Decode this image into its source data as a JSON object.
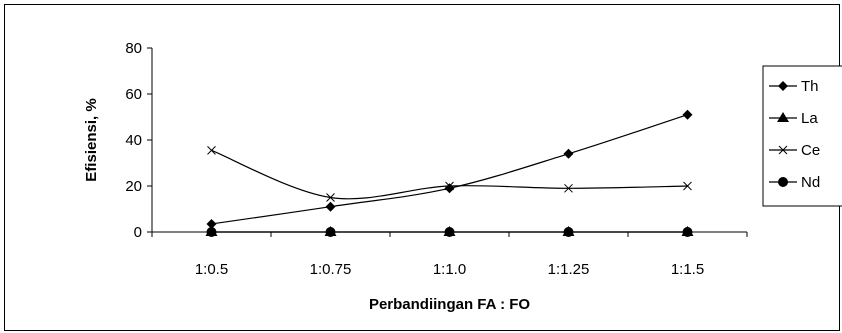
{
  "chart_data": {
    "type": "line",
    "categories": [
      "1:0.5",
      "1:0.75",
      "1:1.0",
      "1:1.25",
      "1:1.5"
    ],
    "series": [
      {
        "name": "Th",
        "marker": "diamond",
        "values": [
          3.5,
          11,
          19,
          34,
          51
        ]
      },
      {
        "name": "La",
        "marker": "triangle",
        "values": [
          0,
          0,
          0,
          0,
          0
        ]
      },
      {
        "name": "Ce",
        "marker": "x",
        "values": [
          35.5,
          15,
          20,
          19,
          20
        ]
      },
      {
        "name": "Nd",
        "marker": "circle",
        "values": [
          0,
          0,
          0,
          0,
          0
        ]
      }
    ],
    "xlabel": "Perbandiingan FA : FO",
    "ylabel": "Efisiensi, %",
    "ylim": [
      0,
      80
    ],
    "yticks": [
      0,
      20,
      40,
      60,
      80
    ],
    "grid": false,
    "legend_position": "right"
  }
}
